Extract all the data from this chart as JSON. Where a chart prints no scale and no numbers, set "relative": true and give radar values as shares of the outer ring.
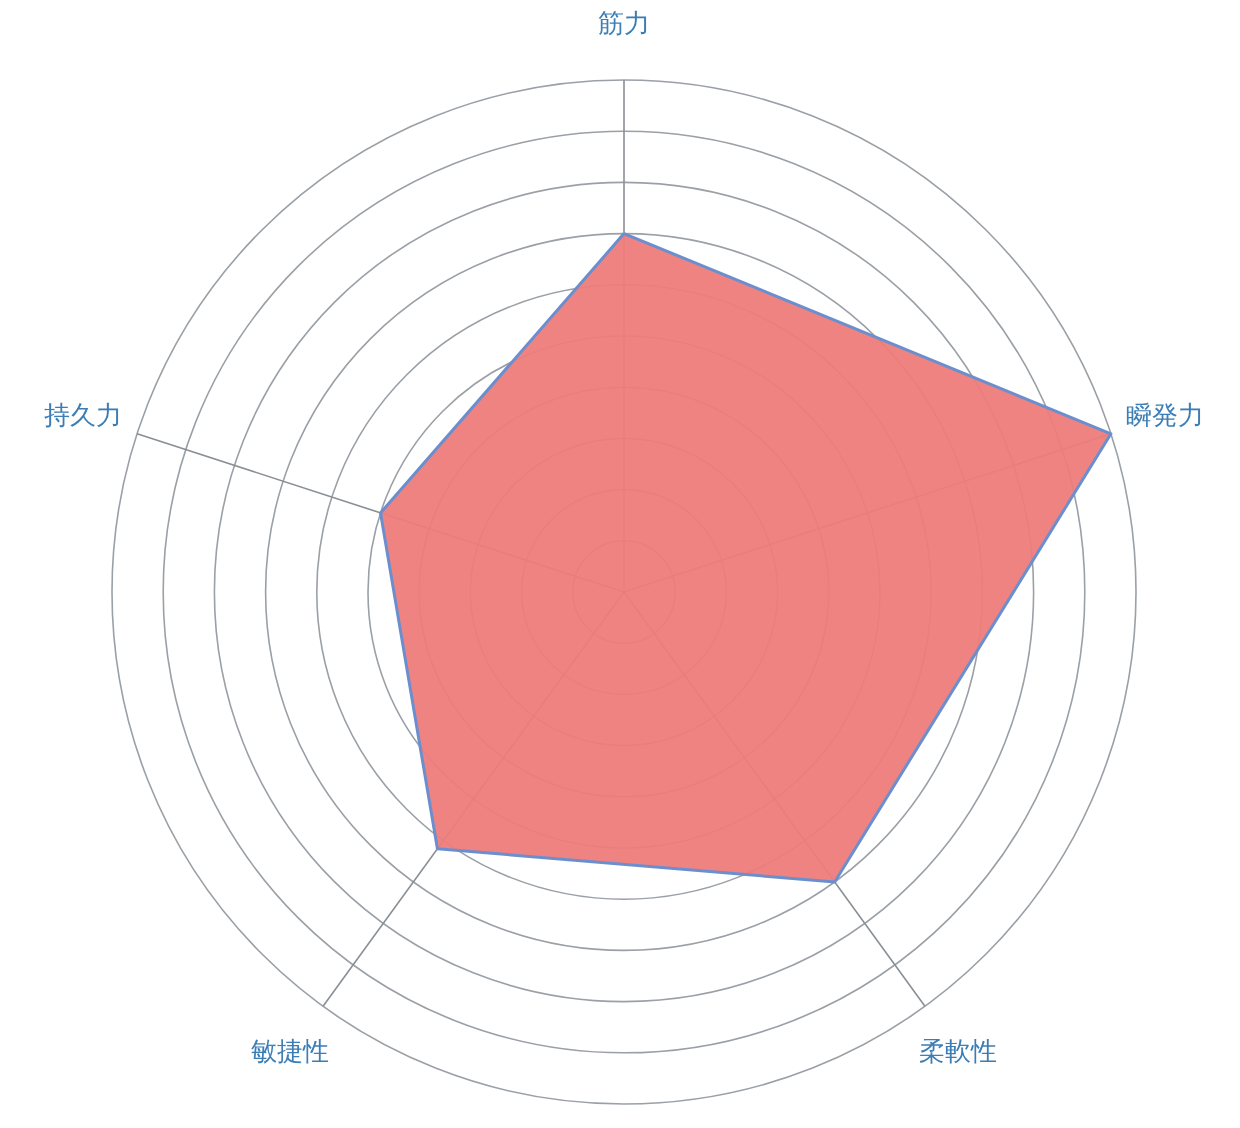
{
  "chart_data": {
    "type": "radar",
    "relative": true,
    "grid": true,
    "categories": [
      "筋力",
      "瞬発力",
      "柔軟性",
      "敏捷性",
      "持久力"
    ],
    "series": [
      {
        "color": "#ee7c7b",
        "values": [
          0.7,
          1.0,
          0.7,
          0.62,
          0.5
        ]
      }
    ]
  }
}
